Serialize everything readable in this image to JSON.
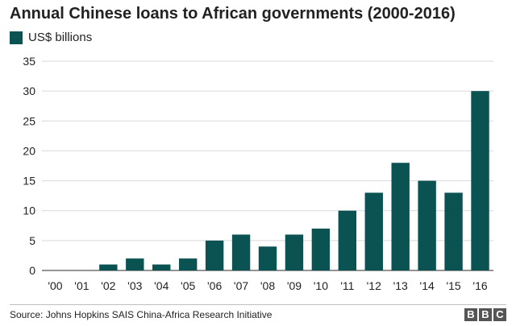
{
  "title": "Annual Chinese loans to African governments (2000-2016)",
  "source": "Source: Johns Hopkins SAIS China-Africa Research Initiative",
  "logo_text": "BBC",
  "colors": {
    "bar": "#0b5352",
    "grid": "#d9d9d9",
    "axis": "#555555",
    "text": "#222222"
  },
  "chart_data": {
    "type": "bar",
    "title": "Annual Chinese loans to African governments (2000-2016)",
    "xlabel": "",
    "ylabel": "",
    "ylim": [
      0,
      35
    ],
    "yticks": [
      "0",
      "5",
      "10",
      "15",
      "20",
      "25",
      "30",
      "35"
    ],
    "grid": true,
    "legend_position": "top-left",
    "categories": [
      "'00",
      "'01",
      "'02",
      "'03",
      "'04",
      "'05",
      "'06",
      "'07",
      "'08",
      "'09",
      "'10",
      "'11",
      "'12",
      "'13",
      "'14",
      "'15",
      "'16"
    ],
    "series": [
      {
        "name": "US$ billions",
        "values": [
          0,
          0,
          1,
          2,
          1,
          2,
          5,
          6,
          4,
          6,
          7,
          10,
          13,
          18,
          15,
          13,
          30
        ]
      }
    ]
  }
}
